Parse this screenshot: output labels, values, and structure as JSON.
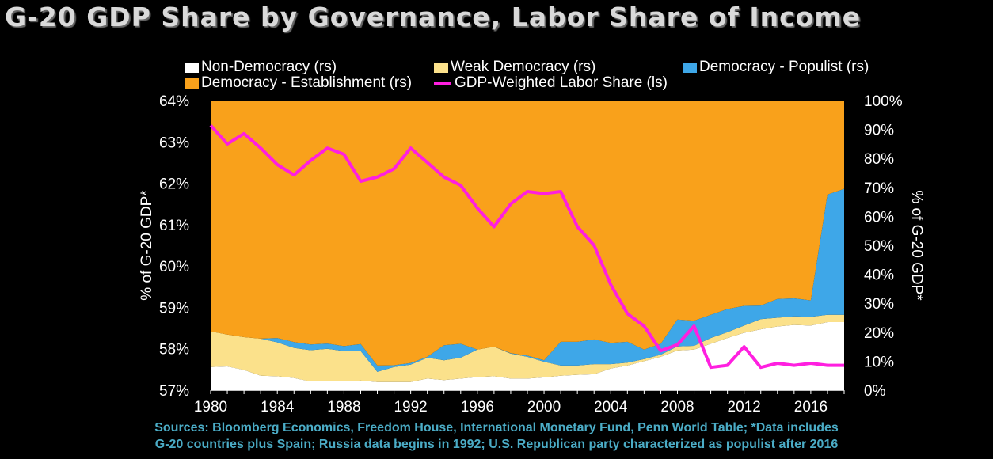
{
  "title": "G-20 GDP Share by Governance, Labor Share of Income",
  "legend": [
    {
      "label": "Non-Democracy (rs)",
      "color": "#ffffff",
      "kind": "area"
    },
    {
      "label": "Weak Democracy (rs)",
      "color": "#fbe18b",
      "kind": "area"
    },
    {
      "label": "Democracy - Populist (rs)",
      "color": "#3ea7e8",
      "kind": "area"
    },
    {
      "label": "Democracy - Establishment (rs)",
      "color": "#f9a11b",
      "kind": "area"
    },
    {
      "label": "GDP-Weighted Labor Share (ls)",
      "color": "#ff1fe0",
      "kind": "line"
    }
  ],
  "axes": {
    "left_label": "% of G-20 GDP*",
    "right_label": "% of G-20 GDP*"
  },
  "source": {
    "line1": "Sources: Bloomberg Economics, Freedom House, International Monetary Fund, Penn World Table; *Data includes",
    "line2": "G-20 countries plus Spain; Russia data begins in 1992; U.S. Republican party characterized as populist after 2016"
  },
  "chart_data": {
    "type": "area",
    "x": [
      1980,
      1981,
      1982,
      1983,
      1984,
      1985,
      1986,
      1987,
      1988,
      1989,
      1990,
      1991,
      1992,
      1993,
      1994,
      1995,
      1996,
      1997,
      1998,
      1999,
      2000,
      2001,
      2002,
      2003,
      2004,
      2005,
      2006,
      2007,
      2008,
      2009,
      2010,
      2011,
      2012,
      2013,
      2014,
      2015,
      2016,
      2017,
      2018
    ],
    "x_ticks": [
      1980,
      1984,
      1988,
      1992,
      1996,
      2000,
      2004,
      2008,
      2012,
      2016
    ],
    "left_axis": {
      "min": 57,
      "max": 64,
      "ticks": [
        "57%",
        "58%",
        "59%",
        "60%",
        "61%",
        "62%",
        "63%",
        "64%"
      ]
    },
    "right_axis": {
      "min": 0,
      "max": 100,
      "ticks": [
        "0%",
        "10%",
        "20%",
        "30%",
        "40%",
        "50%",
        "60%",
        "70%",
        "80%",
        "90%",
        "100%"
      ]
    },
    "stacked_series": [
      {
        "name": "Non-Democracy (rs)",
        "color": "#ffffff",
        "axis": "right",
        "values": [
          8,
          8.2,
          7,
          5,
          4.8,
          4.2,
          3,
          3,
          3,
          3.3,
          2.8,
          2.8,
          2.8,
          4,
          3.5,
          4,
          4.5,
          4.8,
          4,
          4,
          4.4,
          5,
          5.3,
          5.5,
          7.5,
          8.5,
          10,
          11.5,
          13.7,
          14,
          16,
          18,
          19.8,
          21,
          22,
          22.5,
          22.3,
          23.5,
          23.5
        ]
      },
      {
        "name": "Weak Democracy (rs)",
        "color": "#fbe18b",
        "axis": "right",
        "values": [
          12.3,
          11,
          11.3,
          12.8,
          11.7,
          10.4,
          10.8,
          11.3,
          10.5,
          10.2,
          3.5,
          5.2,
          6,
          7.2,
          6.8,
          7.2,
          9.5,
          10.2,
          8.6,
          7.5,
          5.4,
          3.5,
          3.2,
          3.5,
          1.5,
          1,
          0.7,
          0.7,
          1.4,
          1.3,
          2,
          2,
          2.5,
          3.5,
          3,
          3,
          3,
          2.5,
          2.5
        ]
      },
      {
        "name": "Democracy - Populist (rs)",
        "color": "#3ea7e8",
        "axis": "right",
        "values": [
          0,
          0,
          0,
          0,
          1.5,
          2,
          2,
          1.8,
          1.7,
          2.4,
          2.2,
          0.6,
          0.6,
          0.3,
          5.2,
          4.8,
          0,
          0,
          0.2,
          0.4,
          0.5,
          8.2,
          8.2,
          8.5,
          7.3,
          7.2,
          3.3,
          3.8,
          9.3,
          8.7,
          8,
          8,
          6.8,
          4.7,
          6.5,
          6.2,
          5.7,
          41.5,
          43.5
        ]
      },
      {
        "name": "Democracy - Establishment (rs)",
        "color": "#f9a11b",
        "axis": "right",
        "values": [
          79.7,
          80.8,
          81.7,
          82.2,
          82,
          83.4,
          84.2,
          83.9,
          84.8,
          84.1,
          91.5,
          91.4,
          90.6,
          88.5,
          84.5,
          84,
          86,
          85,
          87.2,
          88.1,
          89.7,
          83.3,
          83.3,
          82.5,
          83.7,
          83.3,
          86,
          84,
          75.6,
          76,
          74,
          72,
          70.9,
          70.8,
          68.5,
          68.3,
          69,
          32.5,
          30.5
        ]
      }
    ],
    "line_series": {
      "name": "GDP-Weighted Labor Share (ls)",
      "color": "#ff1fe0",
      "axis": "left",
      "values": [
        63.4,
        62.95,
        63.2,
        62.85,
        62.45,
        62.2,
        62.55,
        62.85,
        62.7,
        62.05,
        62.15,
        62.35,
        62.85,
        62.5,
        62.15,
        61.95,
        61.4,
        60.95,
        61.5,
        61.8,
        61.75,
        61.8,
        60.95,
        60.5,
        59.55,
        58.85,
        58.55,
        57.95,
        58.1,
        58.55,
        57.55,
        57.6,
        58.05,
        57.55,
        57.65,
        57.6,
        57.65,
        57.6,
        57.6
      ]
    }
  }
}
